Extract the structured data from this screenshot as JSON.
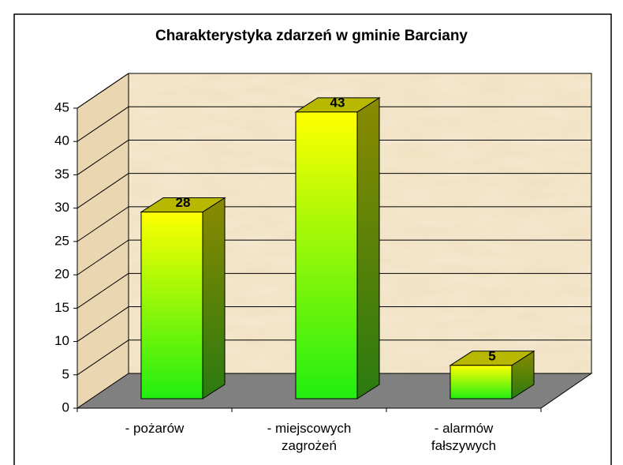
{
  "chart_data": {
    "type": "bar3d",
    "title": "Charakterystyka zdarzeń w gminie Barciany",
    "categories": [
      "- pożarów",
      "- miejscowych zagrożeń",
      "- alarmów fałszywych"
    ],
    "values": [
      28,
      43,
      5
    ],
    "ylim": [
      0,
      45
    ],
    "yticks": [
      0,
      5,
      10,
      15,
      20,
      25,
      30,
      35,
      40,
      45
    ],
    "grid": true
  }
}
